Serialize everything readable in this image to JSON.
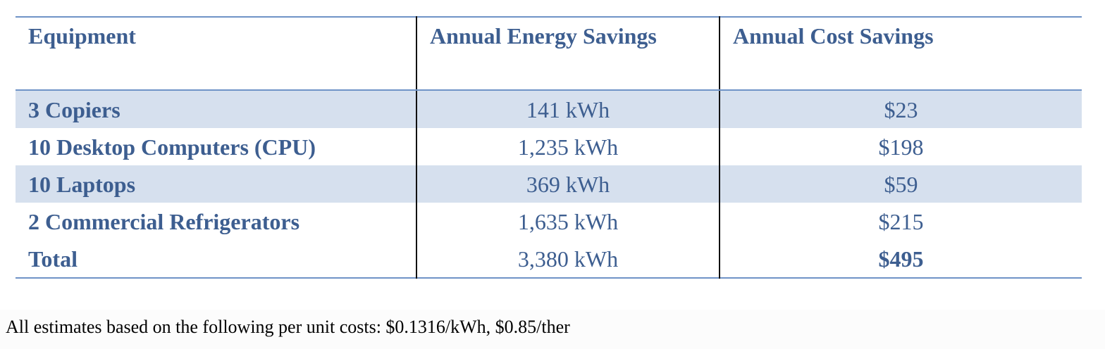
{
  "table": {
    "headers": [
      "Equipment",
      "Annual Energy Savings",
      "Annual Cost Savings"
    ],
    "rows": [
      {
        "equipment": "3 Copiers",
        "energy": "141 kWh",
        "cost": "$23"
      },
      {
        "equipment": "10 Desktop Computers (CPU)",
        "energy": "1,235 kWh",
        "cost": "$198"
      },
      {
        "equipment": "10 Laptops",
        "energy": "369 kWh",
        "cost": "$59"
      },
      {
        "equipment": "2 Commercial Refrigerators",
        "energy": "1,635 kWh",
        "cost": "$215"
      },
      {
        "equipment": "Total",
        "energy": "3,380 kWh",
        "cost": "$495"
      }
    ]
  },
  "footnote": "All estimates based on the following per unit costs: $0.1316/kWh, $0.85/ther",
  "colors": {
    "text": "#3d5e90",
    "row_shade": "#d6e0ee",
    "rule": "#6f93c7"
  }
}
